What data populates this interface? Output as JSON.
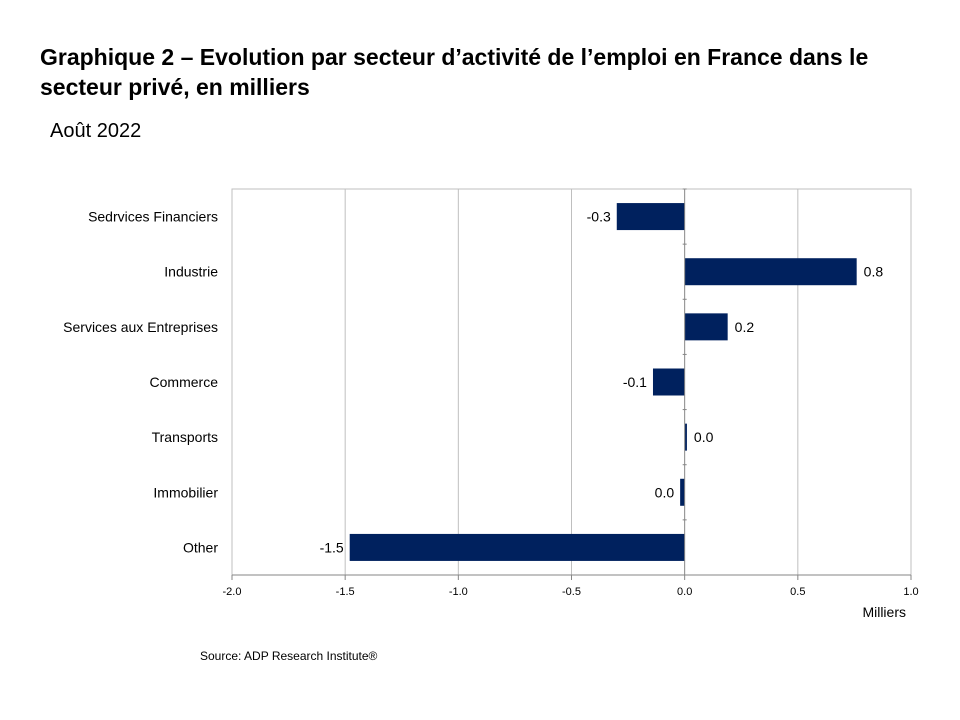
{
  "title": "Graphique 2 – Evolution par secteur d’activité de l’emploi en France dans le secteur privé, en milliers",
  "subtitle": "Août 2022",
  "source": "Source: ADP Research Institute®",
  "colors": {
    "bar": "#00215E",
    "grid": "#BFBFBF",
    "axis": "#868686"
  },
  "chart_data": {
    "type": "bar",
    "orientation": "horizontal",
    "categories": [
      "Sedrvices Financiers",
      "Industrie",
      "Services aux Entreprises",
      "Commerce",
      "Transports",
      "Immobilier",
      "Other"
    ],
    "values": [
      -0.3,
      0.76,
      0.19,
      -0.14,
      0.01,
      -0.02,
      -1.48
    ],
    "data_labels": [
      "-0.3",
      "0.8",
      "0.2",
      "-0.1",
      "0.0",
      "0.0",
      "-1.5"
    ],
    "xlim": [
      -2.0,
      1.0
    ],
    "xticks": [
      -2.0,
      -1.5,
      -1.0,
      -0.5,
      0.0,
      0.5,
      1.0
    ],
    "xtick_labels": [
      "-2.0",
      "-1.5",
      "-1.0",
      "-0.5",
      "0.0",
      "0.5",
      "1.0"
    ],
    "xlabel": "Milliers",
    "ylabel": "",
    "grid": true,
    "legend": "none"
  }
}
